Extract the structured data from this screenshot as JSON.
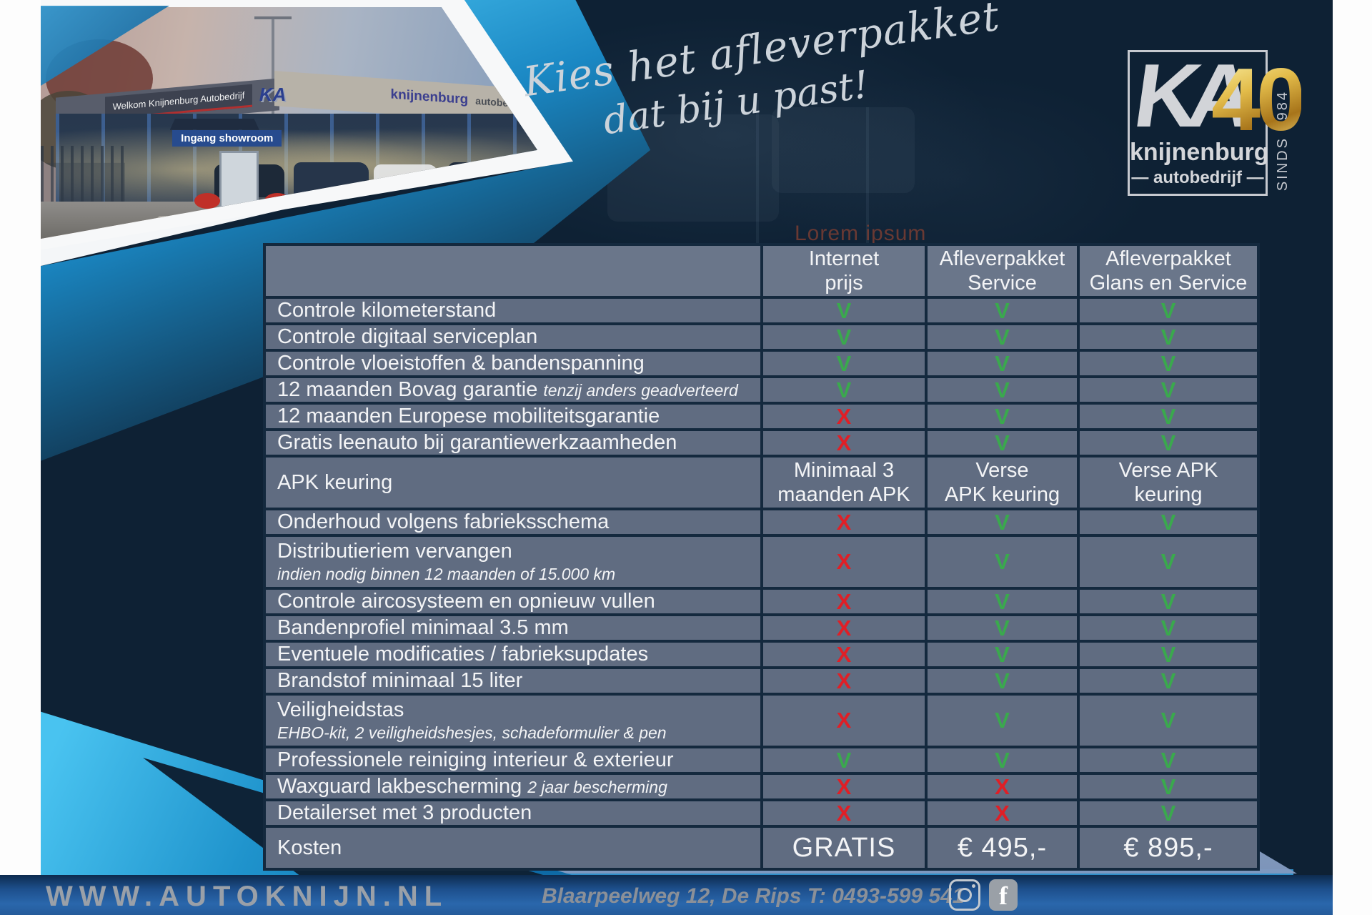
{
  "heading": {
    "line1": "Kies het afleverpakket",
    "line2": "dat bij u past!"
  },
  "watermark": "Lorem ipsum",
  "logo": {
    "ka": "KA",
    "forty": "40",
    "name": "knijnenburg",
    "sub": "autobedrijf",
    "since": "SINDS 1984"
  },
  "photo": {
    "welcome_sign": "Welkom Knijnenburg Autobedrijf",
    "entrance_sign": "Ingang showroom",
    "fascia_brand": "knijnenburg",
    "fascia_brand_sub": "autobedrijf",
    "fascia_ka": "KA"
  },
  "table": {
    "columns": [
      {
        "line1": "",
        "line2": ""
      },
      {
        "line1": "Internet",
        "line2": "prijs"
      },
      {
        "line1": "Afleverpakket",
        "line2": "Service"
      },
      {
        "line1": "Afleverpakket",
        "line2": "Glans en Service"
      }
    ],
    "check_symbol": "V",
    "cross_symbol": "X",
    "colors": {
      "check": "#3aa94d",
      "cross": "#e01f26",
      "accent": "#2ba7dd"
    },
    "rows": [
      {
        "label": "Controle kilometerstand",
        "kind": "marks",
        "values": [
          "V",
          "V",
          "V"
        ]
      },
      {
        "label": "Controle digitaal serviceplan",
        "kind": "marks",
        "values": [
          "V",
          "V",
          "V"
        ]
      },
      {
        "label": "Controle vloeistoffen & bandenspanning",
        "kind": "marks",
        "values": [
          "V",
          "V",
          "V"
        ]
      },
      {
        "label": "12 maanden Bovag garantie",
        "note": "tenzij anders geadverteerd",
        "kind": "marks",
        "values": [
          "V",
          "V",
          "V"
        ]
      },
      {
        "label": "12 maanden Europese mobiliteitsgarantie",
        "kind": "marks",
        "values": [
          "X",
          "V",
          "V"
        ]
      },
      {
        "label": "Gratis leenauto bij garantiewerkzaamheden",
        "kind": "marks",
        "values": [
          "X",
          "V",
          "V"
        ]
      },
      {
        "label": "APK keuring",
        "kind": "text",
        "values": [
          [
            "Minimaal 3",
            "maanden APK"
          ],
          [
            "Verse",
            "APK keuring"
          ],
          [
            "Verse APK",
            "keuring"
          ]
        ]
      },
      {
        "label": "Onderhoud volgens fabrieksschema",
        "kind": "marks",
        "values": [
          "X",
          "V",
          "V"
        ]
      },
      {
        "label": "Distributieriem vervangen",
        "sub": "indien nodig binnen 12 maanden of 15.000 km",
        "kind": "marks",
        "values": [
          "X",
          "V",
          "V"
        ]
      },
      {
        "label": "Controle aircosysteem en opnieuw vullen",
        "kind": "marks",
        "values": [
          "X",
          "V",
          "V"
        ]
      },
      {
        "label": "Bandenprofiel minimaal 3.5 mm",
        "kind": "marks",
        "values": [
          "X",
          "V",
          "V"
        ]
      },
      {
        "label": "Eventuele modificaties / fabrieksupdates",
        "kind": "marks",
        "values": [
          "X",
          "V",
          "V"
        ]
      },
      {
        "label": "Brandstof minimaal 15 liter",
        "kind": "marks",
        "values": [
          "X",
          "V",
          "V"
        ]
      },
      {
        "label": "Veiligheidstas",
        "sub": "EHBO-kit, 2 veiligheidshesjes, schadeformulier & pen",
        "kind": "marks",
        "values": [
          "X",
          "V",
          "V"
        ]
      },
      {
        "label": "Professionele reiniging interieur & exterieur",
        "kind": "marks",
        "values": [
          "V",
          "V",
          "V"
        ]
      },
      {
        "label": "Waxguard lakbescherming",
        "note": "2 jaar bescherming",
        "kind": "marks",
        "values": [
          "X",
          "X",
          "V"
        ]
      },
      {
        "label": "Detailerset met 3 producten",
        "kind": "marks",
        "values": [
          "X",
          "X",
          "V"
        ]
      },
      {
        "label": "Kosten",
        "kind": "price",
        "values": [
          "GRATIS",
          "€ 495,-",
          "€ 895,-"
        ]
      }
    ]
  },
  "footer": {
    "url": "WWW.AUTOKNIJN.NL",
    "address": "Blaarpeelweg 12, De Rips  T: 0493-599 541",
    "icons": [
      "instagram",
      "facebook"
    ],
    "facebook_glyph": "f"
  }
}
